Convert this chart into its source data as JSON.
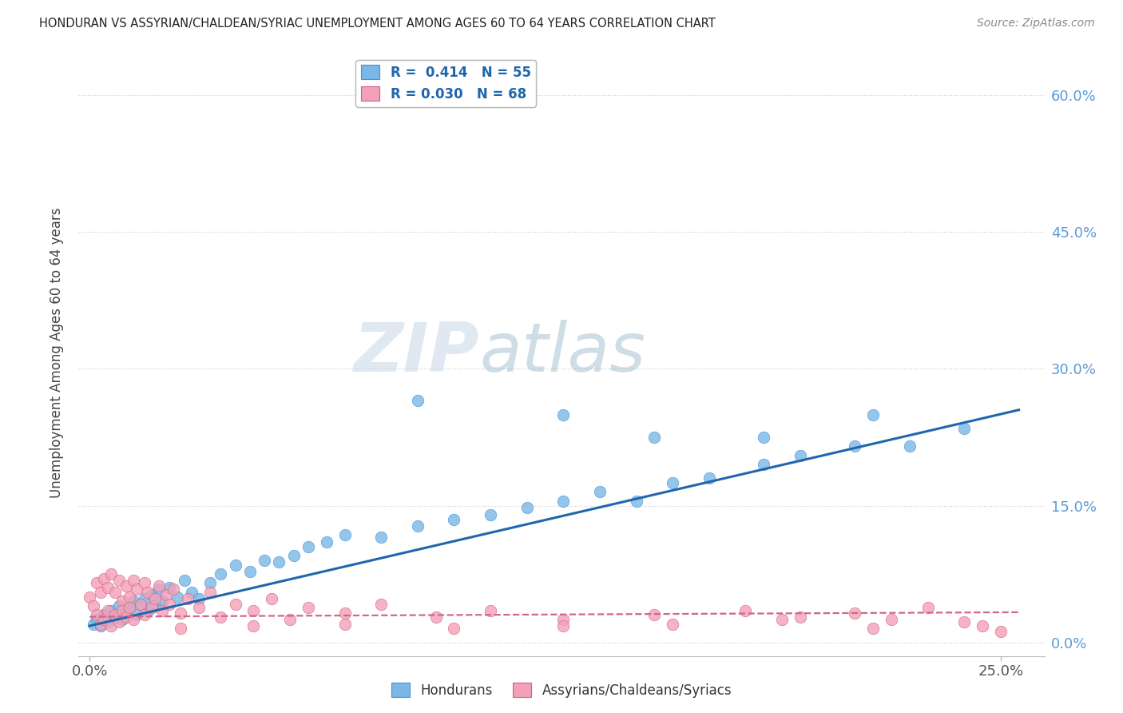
{
  "title": "HONDURAN VS ASSYRIAN/CHALDEAN/SYRIAC UNEMPLOYMENT AMONG AGES 60 TO 64 YEARS CORRELATION CHART",
  "source": "Source: ZipAtlas.com",
  "ylabel_label": "Unemployment Among Ages 60 to 64 years",
  "blue_color": "#7ab8e8",
  "blue_edge_color": "#4a90d4",
  "pink_color": "#f4a0b8",
  "pink_edge_color": "#d06080",
  "blue_line_color": "#2166ac",
  "pink_line_color": "#d06888",
  "xlim": [
    -0.003,
    0.262
  ],
  "ylim": [
    -0.015,
    0.65
  ],
  "xticks": [
    0.0,
    0.25
  ],
  "xticklabels": [
    "0.0%",
    "25.0%"
  ],
  "yticks": [
    0.0,
    0.15,
    0.3,
    0.45,
    0.6
  ],
  "yticklabels": [
    "0.0%",
    "15.0%",
    "30.0%",
    "45.0%",
    "60.0%"
  ],
  "hon_line_x": [
    0.0,
    0.255
  ],
  "hon_line_y": [
    0.018,
    0.255
  ],
  "ass_line_x": [
    0.0,
    0.255
  ],
  "ass_line_y": [
    0.028,
    0.033
  ],
  "hon_x": [
    0.001,
    0.002,
    0.003,
    0.004,
    0.005,
    0.006,
    0.007,
    0.008,
    0.009,
    0.01,
    0.011,
    0.012,
    0.013,
    0.014,
    0.015,
    0.016,
    0.017,
    0.018,
    0.019,
    0.02,
    0.022,
    0.024,
    0.026,
    0.028,
    0.03,
    0.033,
    0.036,
    0.04,
    0.044,
    0.048,
    0.052,
    0.056,
    0.06,
    0.065,
    0.07,
    0.08,
    0.09,
    0.1,
    0.11,
    0.12,
    0.13,
    0.14,
    0.15,
    0.16,
    0.17,
    0.185,
    0.195,
    0.21,
    0.225,
    0.24,
    0.09,
    0.13,
    0.155,
    0.185,
    0.215
  ],
  "hon_y": [
    0.02,
    0.025,
    0.018,
    0.03,
    0.022,
    0.035,
    0.028,
    0.04,
    0.025,
    0.032,
    0.038,
    0.045,
    0.03,
    0.042,
    0.048,
    0.035,
    0.052,
    0.04,
    0.058,
    0.045,
    0.06,
    0.05,
    0.068,
    0.055,
    0.048,
    0.065,
    0.075,
    0.085,
    0.078,
    0.09,
    0.088,
    0.095,
    0.105,
    0.11,
    0.118,
    0.115,
    0.128,
    0.135,
    0.14,
    0.148,
    0.155,
    0.165,
    0.155,
    0.175,
    0.18,
    0.195,
    0.205,
    0.215,
    0.215,
    0.235,
    0.265,
    0.25,
    0.225,
    0.225,
    0.25
  ],
  "ass_x": [
    0.0,
    0.001,
    0.002,
    0.002,
    0.003,
    0.003,
    0.004,
    0.004,
    0.005,
    0.005,
    0.006,
    0.006,
    0.007,
    0.007,
    0.008,
    0.008,
    0.009,
    0.009,
    0.01,
    0.01,
    0.011,
    0.011,
    0.012,
    0.012,
    0.013,
    0.014,
    0.015,
    0.015,
    0.016,
    0.017,
    0.018,
    0.019,
    0.02,
    0.021,
    0.022,
    0.023,
    0.025,
    0.027,
    0.03,
    0.033,
    0.036,
    0.04,
    0.045,
    0.05,
    0.055,
    0.06,
    0.07,
    0.08,
    0.095,
    0.11,
    0.13,
    0.155,
    0.18,
    0.195,
    0.21,
    0.22,
    0.23,
    0.24,
    0.025,
    0.045,
    0.07,
    0.1,
    0.13,
    0.16,
    0.19,
    0.215,
    0.245,
    0.25
  ],
  "ass_y": [
    0.05,
    0.04,
    0.065,
    0.03,
    0.055,
    0.02,
    0.07,
    0.025,
    0.06,
    0.035,
    0.075,
    0.018,
    0.055,
    0.03,
    0.068,
    0.022,
    0.045,
    0.035,
    0.062,
    0.028,
    0.05,
    0.038,
    0.068,
    0.025,
    0.058,
    0.042,
    0.065,
    0.03,
    0.055,
    0.038,
    0.048,
    0.062,
    0.035,
    0.052,
    0.042,
    0.058,
    0.032,
    0.048,
    0.038,
    0.055,
    0.028,
    0.042,
    0.035,
    0.048,
    0.025,
    0.038,
    0.032,
    0.042,
    0.028,
    0.035,
    0.025,
    0.03,
    0.035,
    0.028,
    0.032,
    0.025,
    0.038,
    0.022,
    0.015,
    0.018,
    0.02,
    0.015,
    0.018,
    0.02,
    0.025,
    0.015,
    0.018,
    0.012
  ]
}
